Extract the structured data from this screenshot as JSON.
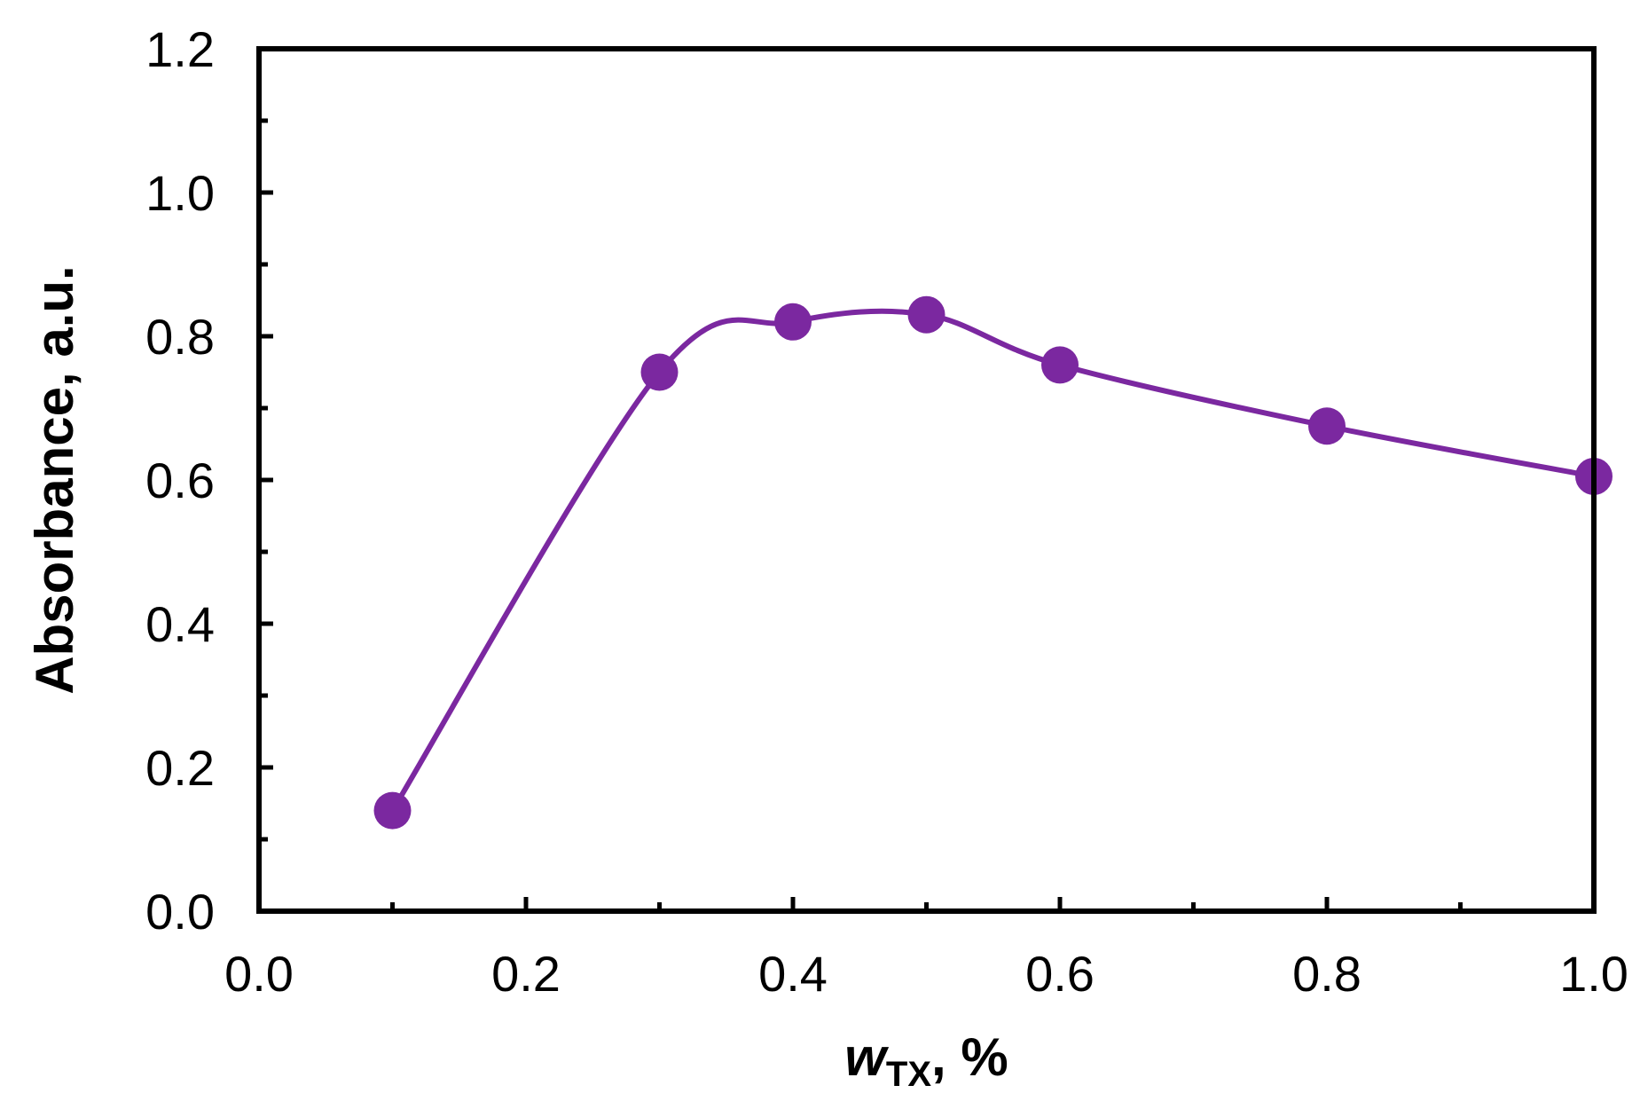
{
  "chart_data": {
    "type": "line",
    "x": [
      0.1,
      0.3,
      0.4,
      0.5,
      0.6,
      0.8,
      1.0
    ],
    "series": [
      {
        "values": [
          0.14,
          0.75,
          0.82,
          0.83,
          0.76,
          0.675,
          0.605
        ]
      }
    ],
    "xlim": [
      0.0,
      1.0
    ],
    "ylim": [
      0.0,
      1.2
    ],
    "x_major_ticks": [
      0.0,
      0.2,
      0.4,
      0.6,
      0.8,
      1.0
    ],
    "x_tick_labels": [
      "0.0",
      "0.2",
      "0.4",
      "0.6",
      "0.8",
      "1.0"
    ],
    "x_minor_ticks": [
      0.1,
      0.3,
      0.5,
      0.7,
      0.9
    ],
    "y_major_ticks": [
      0.0,
      0.2,
      0.4,
      0.6,
      0.8,
      1.0,
      1.2
    ],
    "y_tick_labels": [
      "0.0",
      "0.2",
      "0.4",
      "0.6",
      "0.8",
      "1.0",
      "1.2"
    ],
    "y_minor_ticks": [
      0.1,
      0.3,
      0.5,
      0.7,
      0.9,
      1.1
    ],
    "xlabel": {
      "main": "w",
      "sub": "TX",
      "suffix": ", %"
    },
    "ylabel": "Absorbance, a.u.",
    "grid": false,
    "line_style": "smooth",
    "marker": "circle",
    "colors": {
      "series": "#7b28a0",
      "axis": "#000000"
    }
  }
}
